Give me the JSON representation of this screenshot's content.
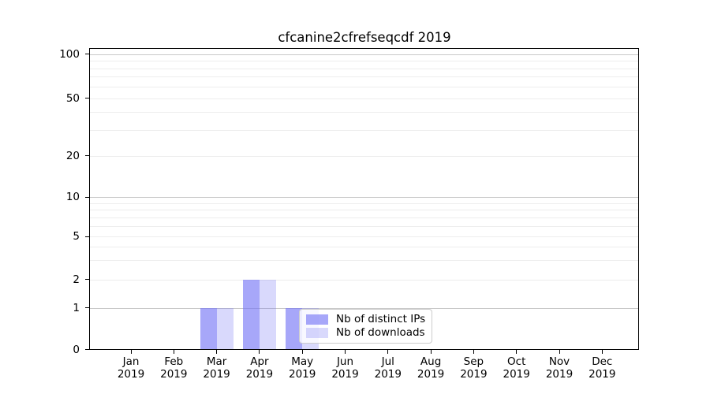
{
  "title": "cfcanine2cfrefseqcdf 2019",
  "chart_data": {
    "type": "bar",
    "title": "cfcanine2cfrefseqcdf 2019",
    "categories": [
      "Jan",
      "Feb",
      "Mar",
      "Apr",
      "May",
      "Jun",
      "Jul",
      "Aug",
      "Sep",
      "Oct",
      "Nov",
      "Dec"
    ],
    "year_label": "2019",
    "series": [
      {
        "name": "Nb of distinct IPs",
        "color": "rgba(115,115,245,0.63)",
        "values": [
          0,
          0,
          1,
          2,
          1,
          0,
          0,
          0,
          0,
          0,
          0,
          0
        ]
      },
      {
        "name": "Nb of downloads",
        "color": "rgba(115,115,245,0.27)",
        "values": [
          0,
          0,
          1,
          2,
          1,
          0,
          0,
          0,
          0,
          0,
          0,
          0
        ]
      }
    ],
    "yscale": "symlog",
    "ylim": [
      0,
      110
    ],
    "yticks": [
      0,
      1,
      2,
      5,
      10,
      20,
      50,
      100
    ],
    "major_gridlines": [
      1,
      10,
      100
    ],
    "minor_gridlines": [
      2,
      3,
      4,
      5,
      6,
      7,
      8,
      9,
      20,
      30,
      40,
      50,
      60,
      70,
      80,
      90
    ],
    "grid_colors": {
      "major": "#c9c9c9",
      "minor": "#ededed"
    },
    "legend": {
      "position": "inside-lower-center",
      "entries": [
        "Nb of distinct IPs",
        "Nb of downloads"
      ]
    }
  }
}
